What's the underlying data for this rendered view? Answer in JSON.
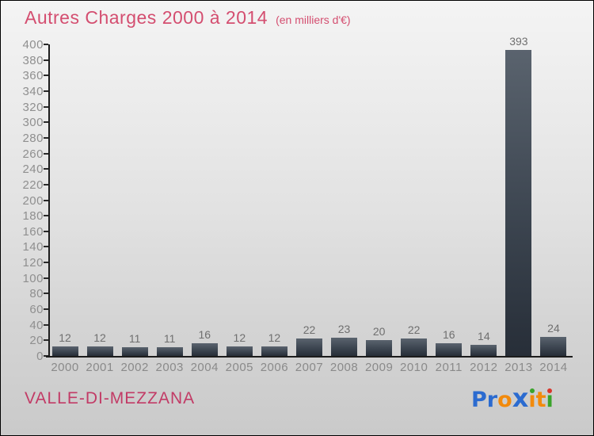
{
  "title": {
    "text": "Autres Charges 2000 à 2014",
    "subtitle": "(en milliers d'€)"
  },
  "footer": {
    "location": "VALLE-DI-MEZZANA",
    "logo": {
      "text": "Proxiti",
      "letters": [
        {
          "ch": "P",
          "color": "#2b6bd0"
        },
        {
          "ch": "r",
          "color": "#2b6bd0"
        },
        {
          "ch": "o",
          "color": "#f28a0c"
        },
        {
          "ch": "x",
          "color": "#2b6bd0",
          "big": true
        },
        {
          "ch": "ı",
          "color": "#f28a0c",
          "dot": "#3aa32b"
        },
        {
          "ch": "t",
          "color": "#f28a0c"
        },
        {
          "ch": "ı",
          "color": "#3aa32b",
          "dot": "#d9362b"
        }
      ]
    }
  },
  "colors": {
    "title": "#d44e70",
    "location": "#c23b66",
    "bar_top": "#5a636e",
    "bar_bottom": "#272e38",
    "axis": "#1c1c1c",
    "ytick_label": "#8f8f8f",
    "xtick_label": "#8a8a8a",
    "value_label": "#6f6f6f"
  },
  "chart_data": {
    "type": "bar",
    "title": "Autres Charges 2000 à 2014",
    "subtitle": "(en milliers d'€)",
    "categories": [
      "2000",
      "2001",
      "2002",
      "2003",
      "2004",
      "2005",
      "2006",
      "2007",
      "2008",
      "2009",
      "2010",
      "2011",
      "2012",
      "2013",
      "2014"
    ],
    "values": [
      12,
      12,
      11,
      11,
      16,
      12,
      12,
      22,
      23,
      20,
      22,
      16,
      14,
      393,
      24
    ],
    "xlabel": "",
    "ylabel": "",
    "ylim": [
      0,
      400
    ],
    "ytick_step": 20,
    "grid": false,
    "legend": false,
    "bar_value_labels": true
  }
}
